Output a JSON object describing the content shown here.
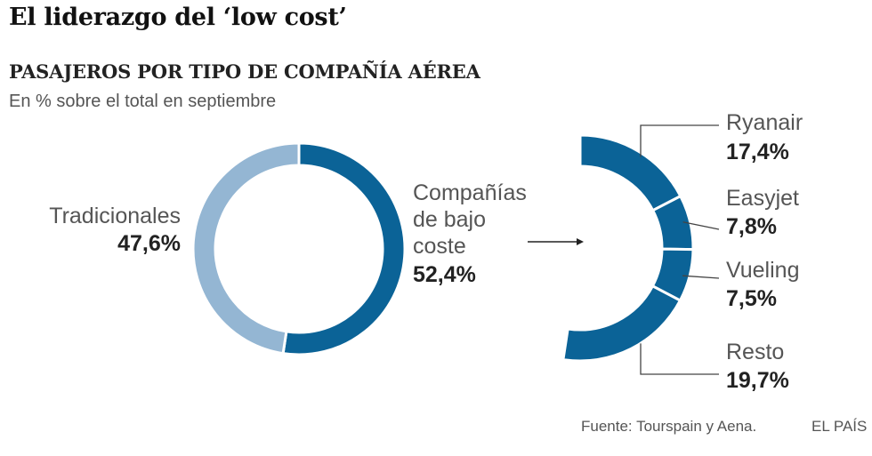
{
  "headline": "El liderazgo del ‘low cost’",
  "chart_title": "PASAJEROS POR TIPO DE COMPAÑÍA AÉREA",
  "subtitle": "En % sobre el total en septiembre",
  "source": "Fuente: Tourspain y Aena.",
  "brand": "EL PAÍS",
  "colors": {
    "dark_blue": "#0b6397",
    "light_blue": "#94b6d3",
    "line": "#444444"
  },
  "chart_data": [
    {
      "type": "pie",
      "style": "donut",
      "slices": [
        {
          "label_lines": [
            "Compañías",
            "de bajo",
            "coste"
          ],
          "value_text": "52,4%",
          "value": 52.4,
          "color": "#0b6397"
        },
        {
          "label_lines": [
            "Tradicionales"
          ],
          "value_text": "47,6%",
          "value": 47.6,
          "color": "#94b6d3"
        }
      ]
    },
    {
      "type": "pie",
      "style": "half-donut breakdown of low-cost share",
      "slices": [
        {
          "label": "Ryanair",
          "value_text": "17,4%",
          "value": 17.4
        },
        {
          "label": "Easyjet",
          "value_text": "7,8%",
          "value": 7.8
        },
        {
          "label": "Vueling",
          "value_text": "7,5%",
          "value": 7.5
        },
        {
          "label": "Resto",
          "value_text": "19,7%",
          "value": 19.7
        }
      ]
    }
  ]
}
